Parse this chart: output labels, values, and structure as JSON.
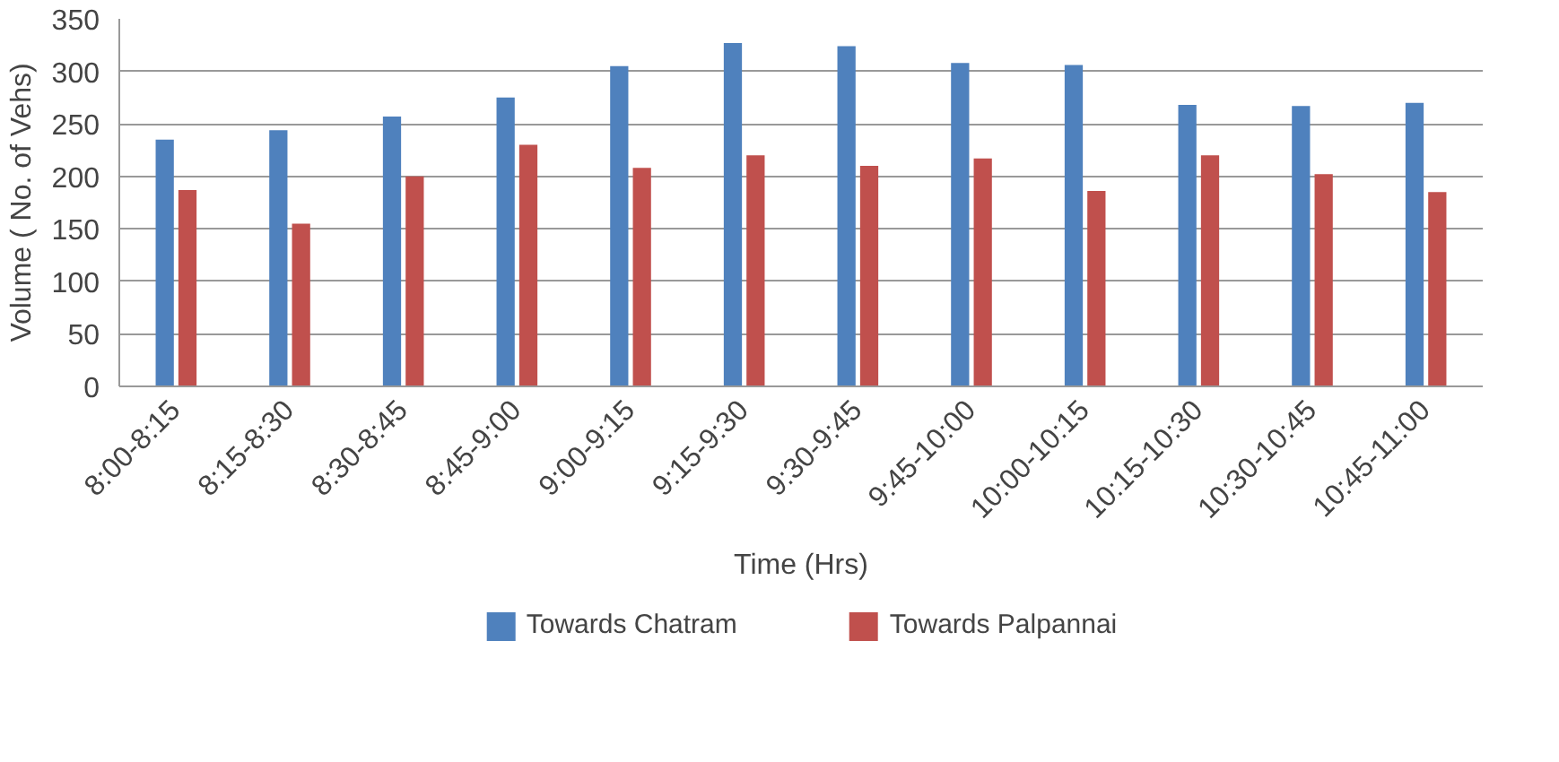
{
  "chart_data": {
    "type": "bar",
    "xlabel": "Time (Hrs)",
    "ylabel": "Volume ( No. of Vehs)",
    "categories": [
      "8:00-8:15",
      "8:15-8:30",
      "8:30-8:45",
      "8:45-9:00",
      "9:00-9:15",
      "9:15-9:30",
      "9:30-9:45",
      "9:45-10:00",
      "10:00-10:15",
      "10:15-10:30",
      "10:30-10:45",
      "10:45-11:00"
    ],
    "series": [
      {
        "name": "Towards Chatram",
        "color": "#4f81bd",
        "values": [
          235,
          244,
          257,
          275,
          305,
          327,
          324,
          308,
          306,
          268,
          267,
          270
        ]
      },
      {
        "name": "Towards Palpannai",
        "color": "#c0504d",
        "values": [
          187,
          155,
          200,
          230,
          208,
          220,
          210,
          217,
          186,
          220,
          202,
          185
        ]
      }
    ],
    "ylim": [
      0,
      350
    ],
    "yticks": [
      0,
      50,
      100,
      150,
      200,
      250,
      300,
      350
    ],
    "grid": "y",
    "legend": "bottom"
  }
}
